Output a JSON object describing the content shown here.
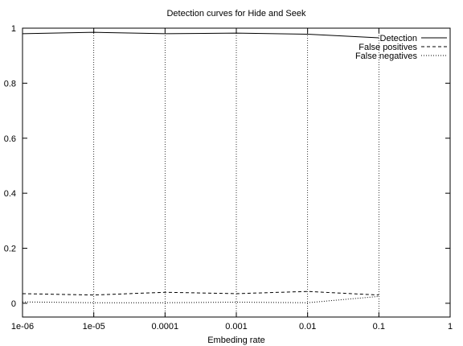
{
  "chart_data": {
    "type": "line",
    "title": "Detection curves for Hide and Seek",
    "xlabel": "Embeding rate",
    "ylabel": "",
    "x_scale": "log",
    "xlim": [
      1e-06,
      1
    ],
    "ylim": [
      -0.05,
      1
    ],
    "x_ticks": [
      {
        "value": 1e-06,
        "label": "1e-06"
      },
      {
        "value": 1e-05,
        "label": "1e-05"
      },
      {
        "value": 0.0001,
        "label": "0.0001"
      },
      {
        "value": 0.001,
        "label": "0.001"
      },
      {
        "value": 0.01,
        "label": "0.01"
      },
      {
        "value": 0.1,
        "label": "0.1"
      },
      {
        "value": 1,
        "label": "1"
      }
    ],
    "y_ticks": [
      {
        "value": 0,
        "label": "0"
      },
      {
        "value": 0.2,
        "label": "0.2"
      },
      {
        "value": 0.4,
        "label": "0.4"
      },
      {
        "value": 0.6,
        "label": "0.6"
      },
      {
        "value": 0.8,
        "label": "0.8"
      },
      {
        "value": 1,
        "label": "1"
      }
    ],
    "vertical_gridlines_at": [
      1e-05,
      0.0001,
      0.001,
      0.01,
      0.1
    ],
    "legend_position": "top-right",
    "series": [
      {
        "name": "Detection",
        "dash": "solid",
        "x": [
          1e-06,
          1e-05,
          0.0001,
          0.001,
          0.01,
          0.1
        ],
        "y": [
          0.98,
          0.985,
          0.98,
          0.982,
          0.978,
          0.965
        ]
      },
      {
        "name": "False positives",
        "dash": "dashed",
        "x": [
          1e-06,
          1e-05,
          0.0001,
          0.001,
          0.01,
          0.1
        ],
        "y": [
          0.035,
          0.03,
          0.04,
          0.035,
          0.043,
          0.03
        ]
      },
      {
        "name": "False negatives",
        "dash": "dotted",
        "x": [
          1e-06,
          1e-05,
          0.0001,
          0.001,
          0.01,
          0.1
        ],
        "y": [
          0.005,
          0.002,
          0.002,
          0.004,
          0.002,
          0.025
        ]
      }
    ]
  }
}
